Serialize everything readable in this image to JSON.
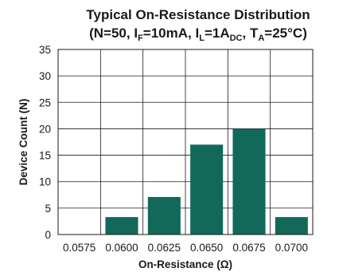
{
  "chart_data": {
    "type": "bar",
    "title_main": "Typical On-Resistance Distribution",
    "title_sub": {
      "p1": "(N=50, I",
      "s1": "F",
      "p2": "=10mA, I",
      "s2": "L",
      "p3": "=1A",
      "s3": "DC",
      "p4": ", T",
      "s4": "A",
      "p5": "=25°C)"
    },
    "xlabel": "On-Resistance (Ω)",
    "ylabel": "Device Count (N)",
    "categories": [
      "0.0575",
      "0.0600",
      "0.0625",
      "0.0650",
      "0.0675",
      "0.0700"
    ],
    "values": [
      0,
      3.3,
      7.1,
      17,
      20,
      3.3
    ],
    "ylim": [
      0,
      35
    ],
    "yticks": [
      0,
      5,
      10,
      15,
      20,
      25,
      30,
      35
    ],
    "grid": true,
    "bar_color": "#12695a"
  }
}
